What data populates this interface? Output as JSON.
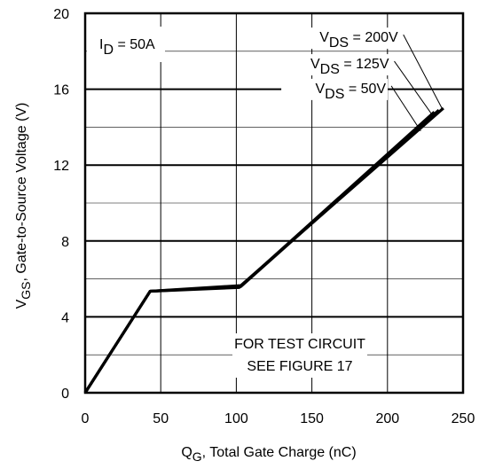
{
  "chart_data": {
    "type": "line",
    "xlabel": {
      "main": "Q",
      "sub": "G",
      "rest": ", Total Gate Charge (nC)"
    },
    "ylabel": {
      "main": "V",
      "sub": "GS",
      "rest": ", Gate-to-Source Voltage (V)"
    },
    "xlim": [
      0,
      250
    ],
    "ylim": [
      0,
      20
    ],
    "x_ticks": [
      0,
      50,
      100,
      150,
      200,
      250
    ],
    "y_ticks": [
      0,
      4,
      8,
      12,
      16,
      20
    ],
    "x_tick_labels": [
      "0",
      "50",
      "100",
      "150",
      "200",
      "250"
    ],
    "y_tick_labels": [
      "0",
      "4",
      "8",
      "12",
      "16",
      "20"
    ],
    "grid": true,
    "condition": {
      "main": "I",
      "sub": "D",
      "rest": " = 50A"
    },
    "note": [
      "FOR TEST CIRCUIT",
      "SEE FIGURE 17"
    ],
    "series": [
      {
        "name_main": "V",
        "name_sub": "DS",
        "name_rest": " = 200V",
        "points": [
          [
            0,
            0
          ],
          [
            43,
            5.35
          ],
          [
            103,
            5.65
          ],
          [
            237,
            15.0
          ]
        ],
        "label_end": [
          207,
          18.5
        ],
        "arrow_end": [
          236,
          15.0
        ]
      },
      {
        "name_main": "V",
        "name_sub": "DS",
        "name_rest": " = 125V",
        "points": [
          [
            0,
            0
          ],
          [
            43,
            5.35
          ],
          [
            103,
            5.6
          ],
          [
            234,
            14.9
          ]
        ],
        "label_end": [
          201,
          17.1
        ],
        "arrow_end": [
          230,
          14.6
        ]
      },
      {
        "name_main": "V",
        "name_sub": "DS",
        "name_rest": " = 50V",
        "points": [
          [
            0,
            0
          ],
          [
            43,
            5.35
          ],
          [
            102,
            5.55
          ],
          [
            231,
            14.8
          ]
        ],
        "label_end": [
          199,
          15.8
        ],
        "arrow_end": [
          222,
          13.8
        ]
      }
    ]
  }
}
